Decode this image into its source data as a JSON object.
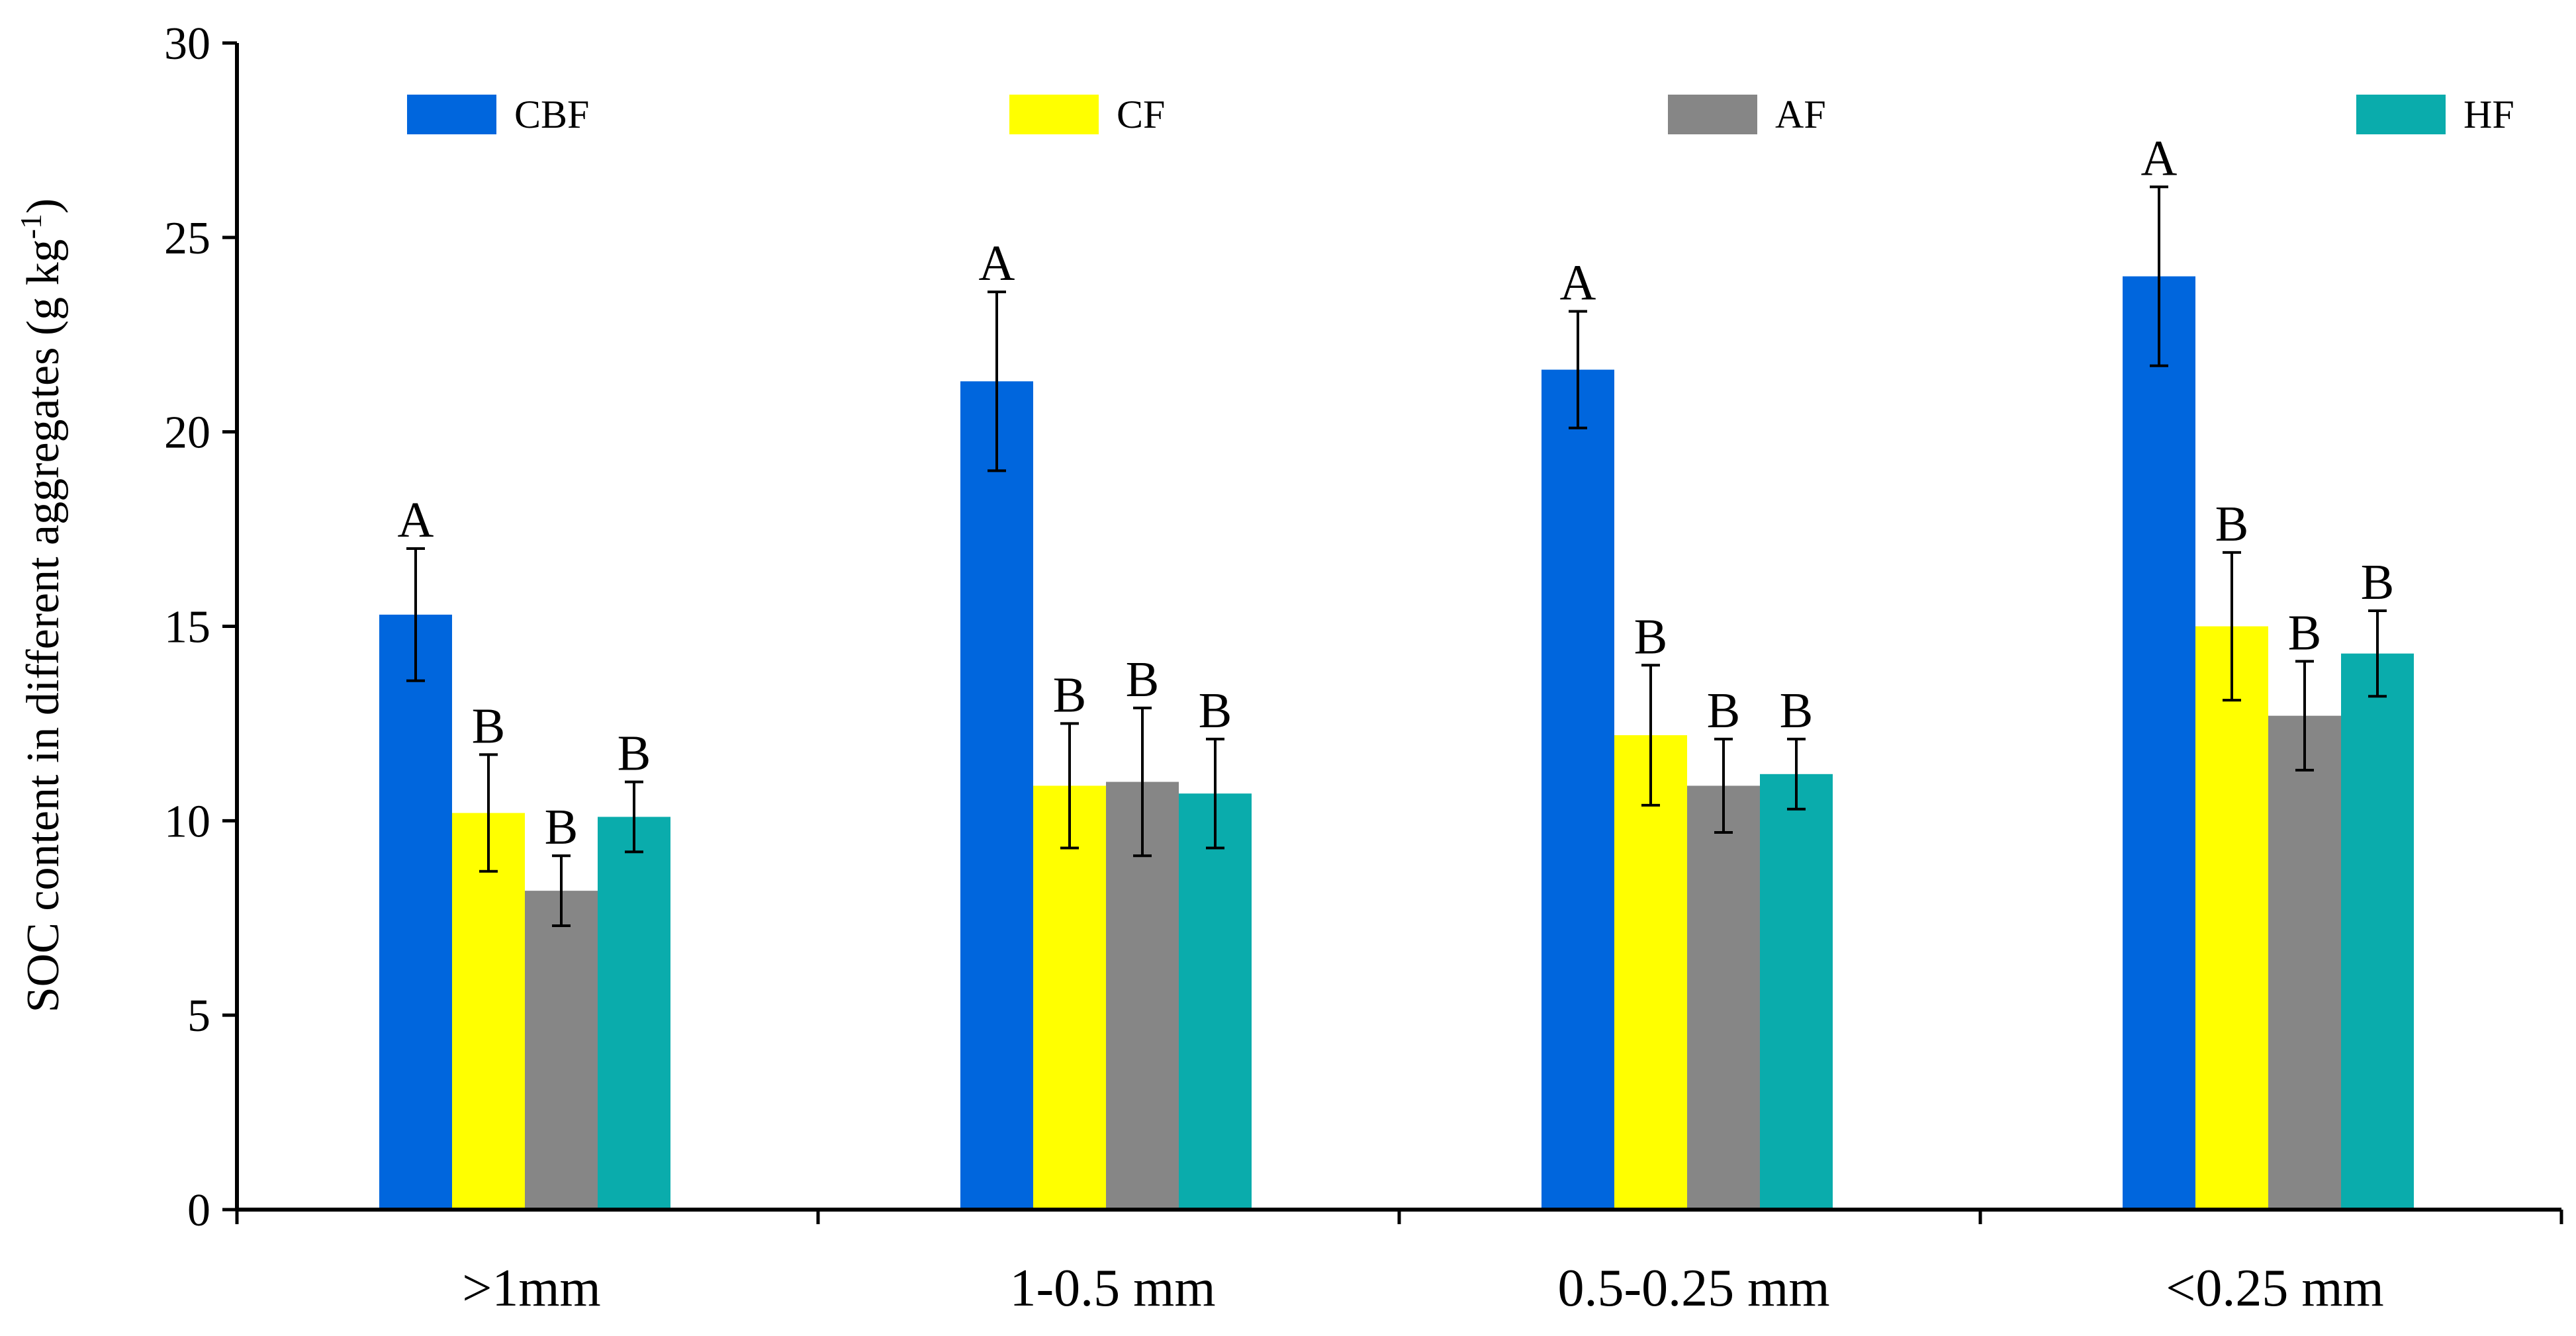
{
  "chart_data": {
    "type": "bar",
    "title": "",
    "xlabel": "",
    "ylabel": "SOC content in different aggregates (g kg",
    "ylabel_superscript": "-1",
    "ylabel_suffix": ")",
    "ylim": [
      0,
      30
    ],
    "yticks": [
      0,
      5,
      10,
      15,
      20,
      25,
      30
    ],
    "categories": [
      ">1mm",
      "1-0.5 mm",
      "0.5-0.25 mm",
      "<0.25 mm"
    ],
    "legend_position": "top",
    "series": [
      {
        "name": "CBF",
        "color": "#0066dd",
        "values": [
          15.3,
          21.3,
          21.6,
          24.0
        ],
        "errors": [
          1.7,
          2.3,
          1.5,
          2.3
        ],
        "letters": [
          "A",
          "A",
          "A",
          "A"
        ]
      },
      {
        "name": "CF",
        "color": "#ffff00",
        "values": [
          10.2,
          10.9,
          12.2,
          15.0
        ],
        "errors": [
          1.5,
          1.6,
          1.8,
          1.9
        ],
        "letters": [
          "B",
          "B",
          "B",
          "B"
        ]
      },
      {
        "name": "AF",
        "color": "#868686",
        "values": [
          8.2,
          11.0,
          10.9,
          12.7
        ],
        "errors": [
          0.9,
          1.9,
          1.2,
          1.4
        ],
        "letters": [
          "B",
          "B",
          "B",
          "B"
        ]
      },
      {
        "name": "HF",
        "color": "#0aacac",
        "values": [
          10.1,
          10.7,
          11.2,
          14.3
        ],
        "errors": [
          0.9,
          1.4,
          0.9,
          1.1
        ],
        "letters": [
          "B",
          "B",
          "B",
          "B"
        ]
      }
    ]
  }
}
